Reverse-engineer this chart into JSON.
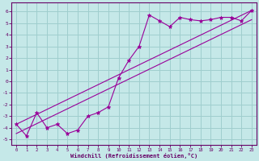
{
  "xlabel": "Windchill (Refroidissement éolien,°C)",
  "bg_color": "#c5e8e8",
  "grid_color": "#9fcece",
  "line_color": "#990099",
  "spine_color": "#660066",
  "xlim": [
    -0.5,
    23.5
  ],
  "ylim": [
    -5.5,
    6.8
  ],
  "xticks": [
    0,
    1,
    2,
    3,
    4,
    5,
    6,
    7,
    8,
    9,
    10,
    11,
    12,
    13,
    14,
    15,
    16,
    17,
    18,
    19,
    20,
    21,
    22,
    23
  ],
  "yticks": [
    -5,
    -4,
    -3,
    -2,
    -1,
    0,
    1,
    2,
    3,
    4,
    5,
    6
  ],
  "line1_x": [
    0,
    23
  ],
  "line1_y": [
    -3.7,
    6.1
  ],
  "line2_x": [
    0,
    23
  ],
  "line2_y": [
    -4.5,
    5.3
  ],
  "dots_x": [
    0,
    1,
    2,
    3,
    4,
    5,
    6,
    7,
    8,
    9,
    10,
    11,
    12,
    13,
    14,
    15,
    16,
    17,
    18,
    19,
    20,
    21,
    22,
    23
  ],
  "dots_y": [
    -3.7,
    -4.7,
    -2.7,
    -4.0,
    -3.7,
    -4.5,
    -4.2,
    -3.0,
    -2.7,
    -2.2,
    0.3,
    1.8,
    3.0,
    5.7,
    5.2,
    4.7,
    5.5,
    5.3,
    5.2,
    5.3,
    5.5,
    5.5,
    5.2,
    6.1
  ]
}
